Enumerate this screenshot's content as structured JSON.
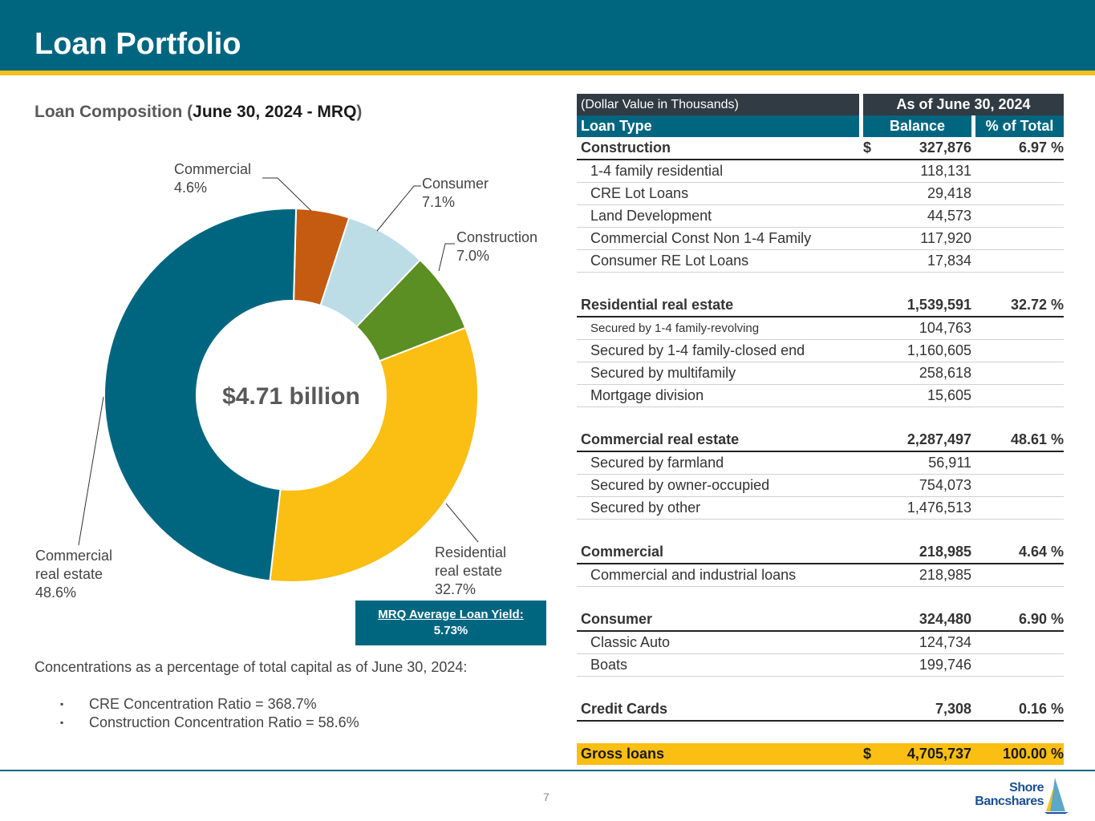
{
  "header": {
    "title": "Loan Portfolio"
  },
  "subtitle": {
    "prefix": "Loan Composition (",
    "date": "June 30, 2024 - MRQ",
    "suffix": ")"
  },
  "chart_data": {
    "type": "pie",
    "variant": "donut",
    "center_label": "$4.71 billion",
    "slices": [
      {
        "name": "Commercial",
        "value": 4.6,
        "label_lines": [
          "Commercial",
          "4.6%"
        ],
        "color": "#c55a11"
      },
      {
        "name": "Consumer",
        "value": 7.1,
        "label_lines": [
          "Consumer",
          "7.1%"
        ],
        "color": "#bcdce6"
      },
      {
        "name": "Construction",
        "value": 7.0,
        "label_lines": [
          "Construction",
          "7.0%"
        ],
        "color": "#5b8e23"
      },
      {
        "name": "Residential real estate",
        "value": 32.7,
        "label_lines": [
          "Residential",
          "real estate",
          "32.7%"
        ],
        "color": "#fbbe12"
      },
      {
        "name": "Commercial real estate",
        "value": 48.6,
        "label_lines": [
          "Commercial",
          "real estate",
          "48.6%"
        ],
        "color": "#006680"
      }
    ]
  },
  "yield_box": {
    "label": "MRQ Average Loan Yield:",
    "value": "5.73%"
  },
  "concentrations": {
    "intro": "Concentrations as a percentage of total capital as of June 30, 2024:",
    "bullet_symbol": "▪",
    "items": [
      "CRE Concentration Ratio = 368.7%",
      "Construction Concentration Ratio = 58.6%"
    ]
  },
  "table": {
    "note": "(Dollar Value in Thousands)",
    "as_of": "As of June 30, 2024",
    "col_type": "Loan Type",
    "col_balance": "Balance",
    "col_pct": "% of Total",
    "groups": [
      {
        "name": "Construction",
        "dollar": "$",
        "balance": "327,876",
        "pct": "6.97 %",
        "items": [
          {
            "name": "1-4 family residential",
            "balance": "118,131"
          },
          {
            "name": "CRE Lot Loans",
            "balance": "29,418"
          },
          {
            "name": "Land Development",
            "balance": "44,573"
          },
          {
            "name": "Commercial Const Non 1-4 Family",
            "balance": "117,920"
          },
          {
            "name": "Consumer RE Lot Loans",
            "balance": "17,834"
          }
        ]
      },
      {
        "name": "Residential real estate",
        "balance": "1,539,591",
        "pct": "32.72 %",
        "items": [
          {
            "name": "Secured by 1-4 family-revolving",
            "balance": "104,763"
          },
          {
            "name": "Secured by 1-4 family-closed end",
            "balance": "1,160,605"
          },
          {
            "name": "Secured by multifamily",
            "balance": "258,618"
          },
          {
            "name": "Mortgage division",
            "balance": "15,605"
          }
        ]
      },
      {
        "name": "Commercial real estate",
        "balance": "2,287,497",
        "pct": "48.61 %",
        "items": [
          {
            "name": "Secured by farmland",
            "balance": "56,911"
          },
          {
            "name": "Secured by owner-occupied",
            "balance": "754,073"
          },
          {
            "name": "Secured by other",
            "balance": "1,476,513"
          }
        ]
      },
      {
        "name": "Commercial",
        "balance": "218,985",
        "pct": "4.64 %",
        "items": [
          {
            "name": "Commercial and industrial loans",
            "balance": "218,985"
          }
        ]
      },
      {
        "name": "Consumer",
        "balance": "324,480",
        "pct": "6.90 %",
        "items": [
          {
            "name": "Classic Auto",
            "balance": "124,734"
          },
          {
            "name": "Boats",
            "balance": "199,746"
          }
        ]
      },
      {
        "name": "Credit Cards",
        "balance": "7,308",
        "pct": "0.16 %",
        "items": []
      }
    ],
    "total": {
      "name": "Gross loans",
      "dollar": "$",
      "balance": "4,705,737",
      "pct": "100.00 %"
    }
  },
  "footer": {
    "page_number": "7",
    "logo_line1": "Shore",
    "logo_line2": "Bancshares"
  }
}
